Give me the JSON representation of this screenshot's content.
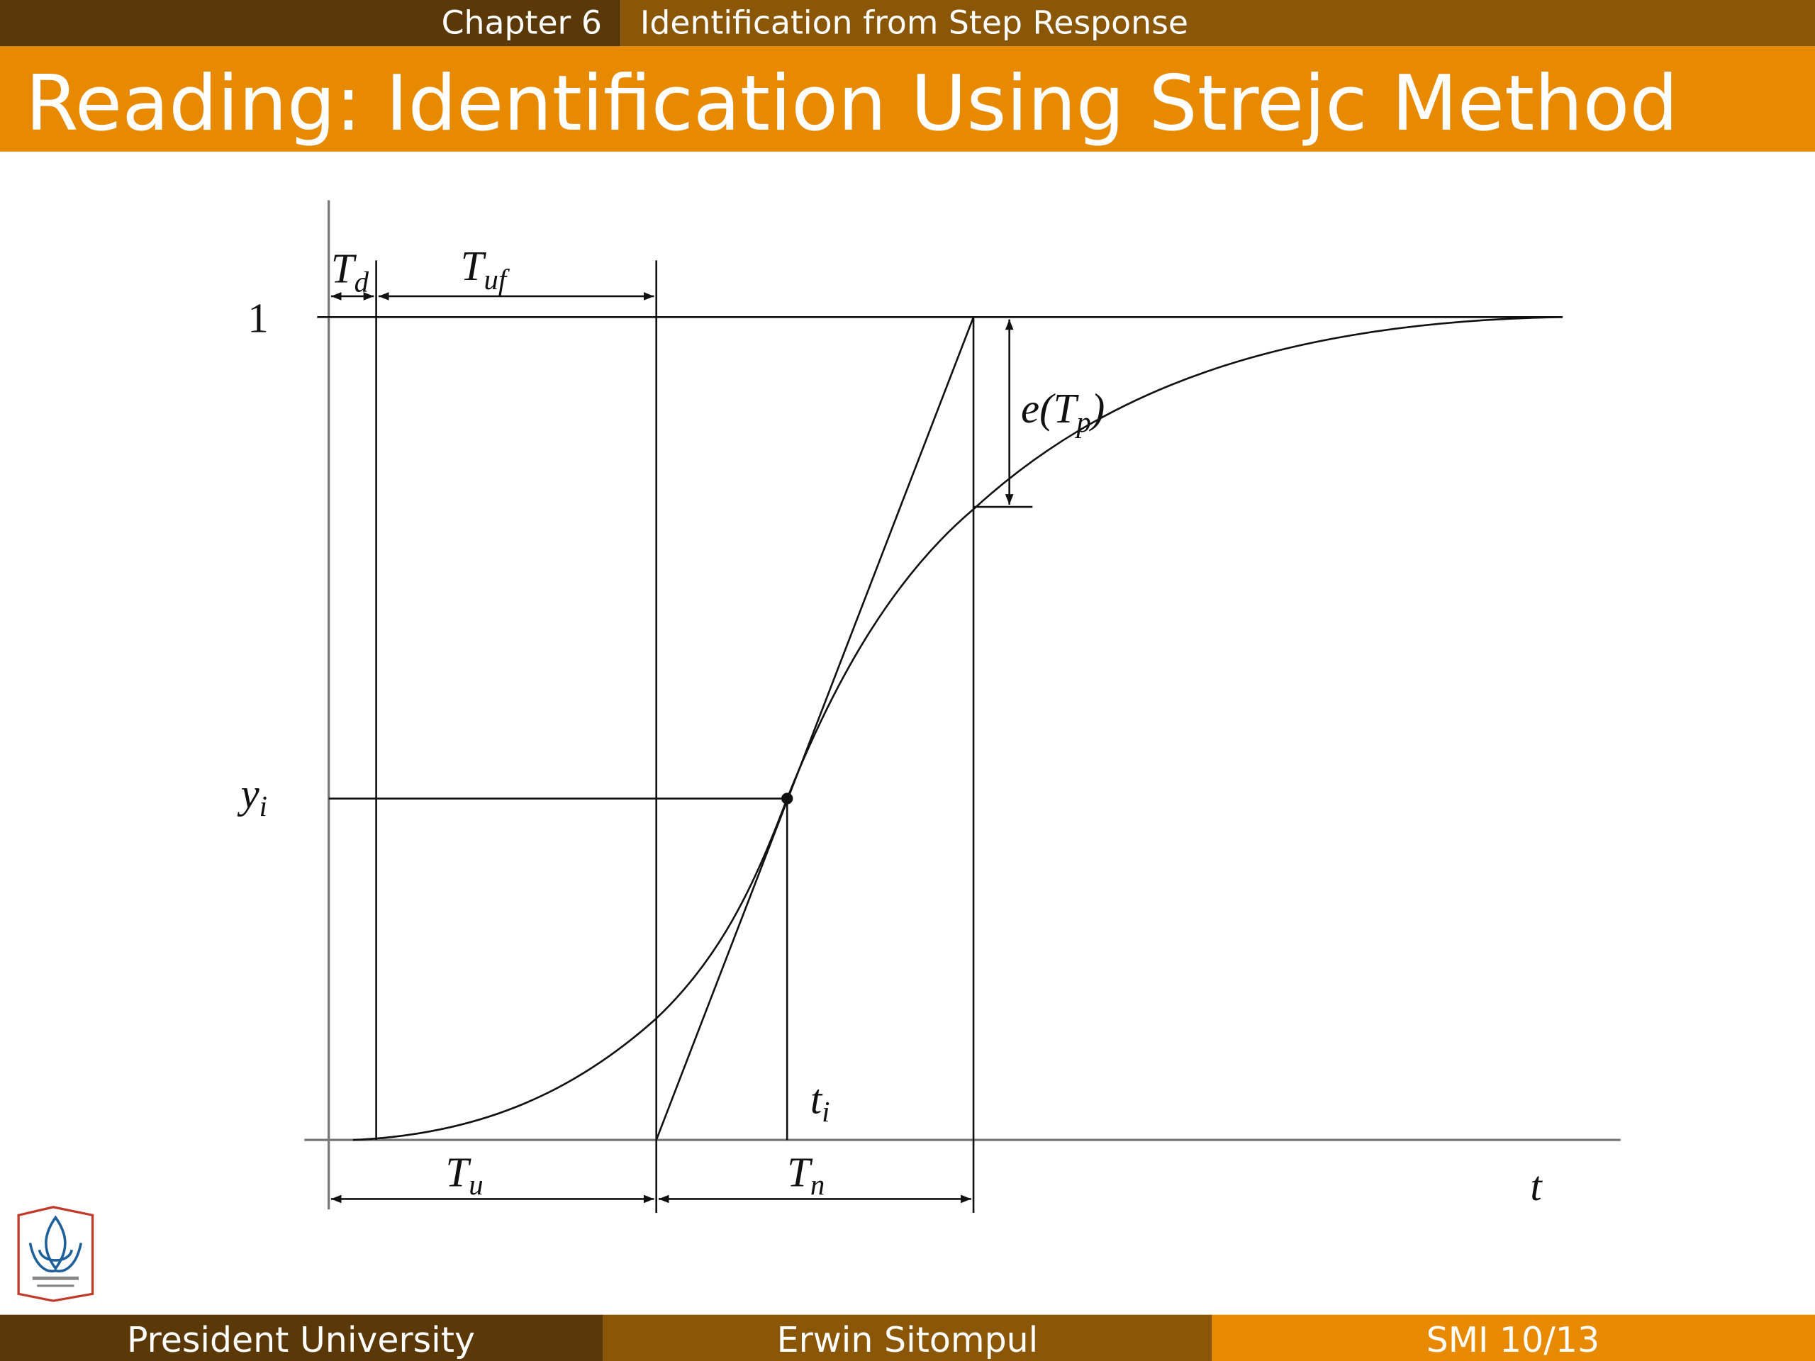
{
  "header": {
    "chapter": "Chapter 6",
    "section": "Identification from Step Response",
    "title": "Reading: Identification Using Strejc Method"
  },
  "diagram": {
    "labels": {
      "Td": {
        "main": "T",
        "sub": "d"
      },
      "Tuf": {
        "main": "T",
        "sub": "uf"
      },
      "one": "1",
      "yi": {
        "main": "y",
        "sub": "i"
      },
      "eTp": {
        "pre": "e(T",
        "sub": "p",
        "post": ")"
      },
      "ti": {
        "main": "t",
        "sub": "i"
      },
      "Tu": {
        "main": "T",
        "sub": "u"
      },
      "Tn": {
        "main": "T",
        "sub": "n"
      },
      "t": "t"
    }
  },
  "footer": {
    "left": "President University",
    "center": "Erwin Sitompul",
    "right": "SMI 10/13"
  }
}
